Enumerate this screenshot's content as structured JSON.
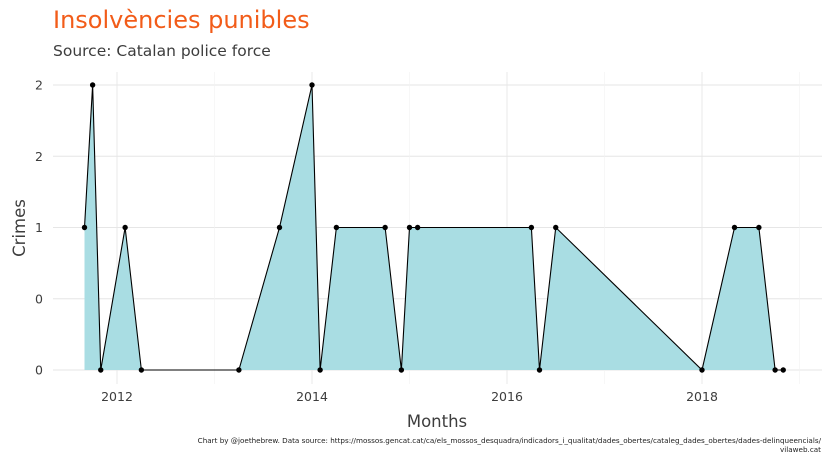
{
  "chart_data": {
    "type": "area",
    "title": "Insolvències punibles",
    "subtitle": "Source: Catalan police force",
    "xlabel": "Months",
    "ylabel": "Crimes",
    "x_ticks": [
      "2012",
      "2014",
      "2016",
      "2018"
    ],
    "y_ticks": [
      "0",
      "0",
      "1",
      "2",
      "2"
    ],
    "y_tick_values": [
      0,
      0.5,
      1,
      1.5,
      2
    ],
    "ylim": [
      0,
      2
    ],
    "grid": true,
    "legend": "none",
    "colors": {
      "fill": "#a9dde3",
      "line": "#000000",
      "title": "#f25c19",
      "grid": "#e6e6e6"
    },
    "caption_lines": [
      "Chart by @joethebrew. Data source: https://mossos.gencat.cat/ca/els_mossos_desquadra/indicadors_i_qualitat/dades_obertes/cataleg_dades_obertes/dades-delinqueencials/",
      "vilaweb.cat"
    ],
    "points": [
      {
        "x": "2011-09",
        "y": 1
      },
      {
        "x": "2011-10",
        "y": 2
      },
      {
        "x": "2011-11",
        "y": 0
      },
      {
        "x": "2012-02",
        "y": 1
      },
      {
        "x": "2012-04",
        "y": 0
      },
      {
        "x": "2013-04",
        "y": 0
      },
      {
        "x": "2013-09",
        "y": 1
      },
      {
        "x": "2014-01",
        "y": 2
      },
      {
        "x": "2014-02",
        "y": 0
      },
      {
        "x": "2014-04",
        "y": 1
      },
      {
        "x": "2014-10",
        "y": 1
      },
      {
        "x": "2014-12",
        "y": 0
      },
      {
        "x": "2015-01",
        "y": 1
      },
      {
        "x": "2015-02",
        "y": 1
      },
      {
        "x": "2016-04",
        "y": 1
      },
      {
        "x": "2016-05",
        "y": 0
      },
      {
        "x": "2016-07",
        "y": 1
      },
      {
        "x": "2018-01",
        "y": 0
      },
      {
        "x": "2018-05",
        "y": 1
      },
      {
        "x": "2018-08",
        "y": 1
      },
      {
        "x": "2018-10",
        "y": 0
      },
      {
        "x": "2018-11",
        "y": 0
      }
    ]
  }
}
